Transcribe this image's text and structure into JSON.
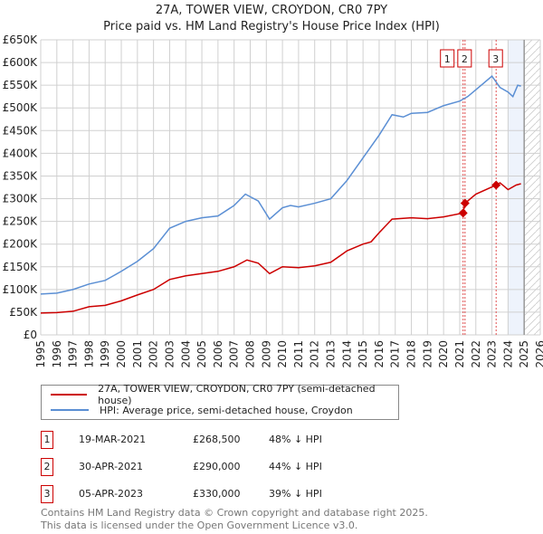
{
  "chart_data": {
    "type": "line",
    "title": "27A, TOWER VIEW, CROYDON, CR0 7PY",
    "subtitle": "Price paid vs. HM Land Registry's House Price Index (HPI)",
    "xlim": [
      1995,
      2026
    ],
    "ylim": [
      0,
      650000
    ],
    "x_ticks": [
      "1995",
      "1996",
      "1997",
      "1998",
      "1999",
      "2000",
      "2001",
      "2002",
      "2003",
      "2004",
      "2005",
      "2006",
      "2007",
      "2008",
      "2009",
      "2010",
      "2011",
      "2012",
      "2013",
      "2014",
      "2015",
      "2016",
      "2017",
      "2018",
      "2019",
      "2020",
      "2021",
      "2022",
      "2023",
      "2024",
      "2025",
      "2026"
    ],
    "y_ticks": [
      "£0",
      "£50K",
      "£100K",
      "£150K",
      "£200K",
      "£250K",
      "£300K",
      "£350K",
      "£400K",
      "£450K",
      "£500K",
      "£550K",
      "£600K",
      "£650K"
    ],
    "grid": true,
    "shaded_region": [
      2024.0,
      2025.0
    ],
    "hatched_from": 2025.0,
    "series": [
      {
        "name": "27A, TOWER VIEW, CROYDON, CR0 7PY (semi-detached house)",
        "color": "#cc0000",
        "x": [
          1995,
          1996,
          1997,
          1998,
          1999,
          2000,
          2001,
          2002,
          2003,
          2004,
          2005,
          2006,
          2007,
          2007.8,
          2008.5,
          2009.2,
          2010,
          2011,
          2012,
          2013,
          2014,
          2015,
          2015.5,
          2016,
          2016.8,
          2018,
          2019,
          2020,
          2021.21,
          2021.33,
          2022,
          2023.26,
          2023.5,
          2024,
          2024.5,
          2024.8
        ],
        "y": [
          48000,
          49000,
          52000,
          62000,
          65000,
          75000,
          88000,
          100000,
          122000,
          130000,
          135000,
          140000,
          150000,
          165000,
          158000,
          135000,
          150000,
          148000,
          152000,
          160000,
          185000,
          200000,
          205000,
          225000,
          255000,
          258000,
          256000,
          260000,
          268500,
          290000,
          310000,
          330000,
          335000,
          320000,
          330000,
          333000
        ]
      },
      {
        "name": "HPI: Average price, semi-detached house, Croydon",
        "color": "#5b8fd4",
        "x": [
          1995,
          1996,
          1997,
          1998,
          1999,
          2000,
          2001,
          2002,
          2003,
          2004,
          2005,
          2006,
          2007,
          2007.7,
          2008.5,
          2009.2,
          2010,
          2010.5,
          2011,
          2012,
          2013,
          2014,
          2015,
          2016,
          2016.8,
          2017.5,
          2018,
          2019,
          2020,
          2021,
          2021.5,
          2022,
          2022.5,
          2023,
          2023.5,
          2024,
          2024.3,
          2024.6,
          2024.8
        ],
        "y": [
          90000,
          92000,
          100000,
          112000,
          120000,
          140000,
          162000,
          190000,
          235000,
          250000,
          258000,
          262000,
          285000,
          310000,
          295000,
          255000,
          280000,
          285000,
          282000,
          290000,
          300000,
          340000,
          390000,
          440000,
          485000,
          480000,
          488000,
          490000,
          505000,
          515000,
          525000,
          540000,
          555000,
          570000,
          545000,
          535000,
          525000,
          550000,
          548000
        ]
      }
    ],
    "sales": [
      {
        "id": "1",
        "x": 2021.21,
        "y": 268500,
        "date": "19-MAR-2021",
        "price": "£268,500",
        "hpi": "48% ↓ HPI"
      },
      {
        "id": "2",
        "x": 2021.33,
        "y": 290000,
        "date": "30-APR-2021",
        "price": "£290,000",
        "hpi": "44% ↓ HPI"
      },
      {
        "id": "3",
        "x": 2023.26,
        "y": 330000,
        "date": "05-APR-2023",
        "price": "£330,000",
        "hpi": "39% ↓ HPI"
      }
    ]
  },
  "footer": {
    "line1": "Contains HM Land Registry data © Crown copyright and database right 2025.",
    "line2": "This data is licensed under the Open Government Licence v3.0."
  }
}
